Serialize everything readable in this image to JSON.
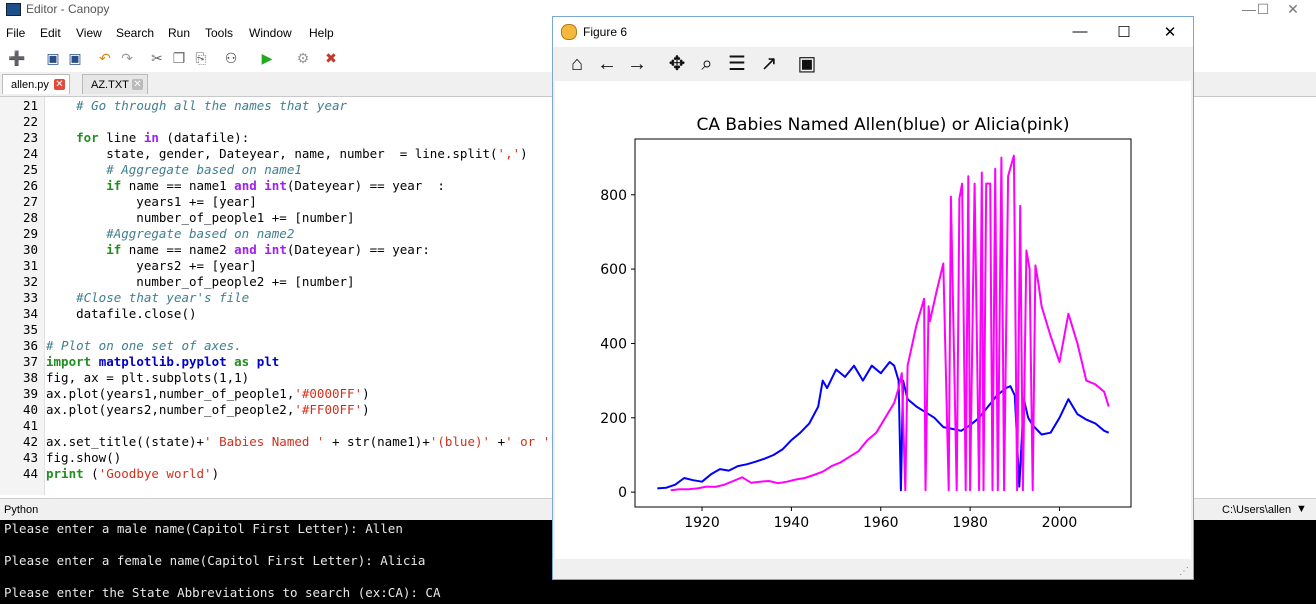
{
  "window": {
    "title": "Editor - Canopy"
  },
  "menu": [
    "File",
    "Edit",
    "View",
    "Search",
    "Run",
    "Tools",
    "Window",
    "Help"
  ],
  "tabs": [
    {
      "label": "allen.py",
      "active": true
    },
    {
      "label": "AZ.TXT",
      "active": false
    }
  ],
  "code_lines": [
    {
      "n": "21",
      "html": "    <span class='cm'># Go through all the names that year</span>"
    },
    {
      "n": "22",
      "html": ""
    },
    {
      "n": "23",
      "html": "    <span class='kw'>for</span> line <span class='kw2'>in</span> (datafile):"
    },
    {
      "n": "24",
      "html": "        state, gender, Dateyear, name, number  = line.split(<span class='st'>','</span>)"
    },
    {
      "n": "25",
      "html": "        <span class='cm'># Aggregate based on name1</span>"
    },
    {
      "n": "26",
      "html": "        <span class='kw'>if</span> name == name1 <span class='kw2'>and</span> <span class='kw2'>int</span>(Dateyear) == year  :"
    },
    {
      "n": "27",
      "html": "            years1 += [year]"
    },
    {
      "n": "28",
      "html": "            number_of_people1 += [number]"
    },
    {
      "n": "29",
      "html": "        <span class='cm'>#Aggregate based on name2</span>"
    },
    {
      "n": "30",
      "html": "        <span class='kw'>if</span> name == name2 <span class='kw2'>and</span> <span class='kw2'>int</span>(Dateyear) == year:"
    },
    {
      "n": "31",
      "html": "            years2 += [year]"
    },
    {
      "n": "32",
      "html": "            number_of_people2 += [number]"
    },
    {
      "n": "33",
      "html": "    <span class='cm'>#Close that year's file</span>"
    },
    {
      "n": "34",
      "html": "    datafile.close()"
    },
    {
      "n": "35",
      "html": ""
    },
    {
      "n": "36",
      "html": "<span class='cm'># Plot on one set of axes.</span>"
    },
    {
      "n": "37",
      "html": "<span class='kw'>import</span> <span class='nb'>matplotlib.pyplot</span> <span class='kw'>as</span> <span class='nb'>plt</span>"
    },
    {
      "n": "38",
      "html": "fig, ax = plt.subplots(1,1)"
    },
    {
      "n": "39",
      "html": "ax.plot(years1,number_of_people1,<span class='st'>'#0000FF'</span>)"
    },
    {
      "n": "40",
      "html": "ax.plot(years2,number_of_people2,<span class='st'>'#FF00FF'</span>)"
    },
    {
      "n": "41",
      "html": ""
    },
    {
      "n": "42",
      "html": "ax.set_title((state)+<span class='st'>' Babies Named '</span> + str(name1)+<span class='st'>'(blue)'</span> +<span class='st'>' or '</span>"
    },
    {
      "n": "43",
      "html": "fig.show()"
    },
    {
      "n": "44",
      "html": "<span class='kw'>print</span> (<span class='st'>'Goodbye world'</span>)"
    }
  ],
  "status": {
    "language": "Python",
    "cwd": "C:\\Users\\allen"
  },
  "console_lines": [
    "Please enter a male name(Capitol First Letter): Allen",
    "",
    "Please enter a female name(Capitol First Letter): Alicia",
    "",
    "Please enter the State Abbreviations to search (ex:CA): CA"
  ],
  "figure": {
    "title": "Figure 6"
  },
  "chart_data": {
    "type": "line",
    "title": "CA Babies Named Allen(blue) or Alicia(pink)",
    "xlim": [
      1905,
      2016
    ],
    "ylim": [
      -40,
      950
    ],
    "xticks": [
      1920,
      1940,
      1960,
      1980,
      2000
    ],
    "yticks": [
      0,
      200,
      400,
      600,
      800
    ],
    "series": [
      {
        "color": "#0000FF",
        "x": [
          1910,
          1912,
          1914,
          1916,
          1918,
          1920,
          1922,
          1924,
          1926,
          1928,
          1930,
          1932,
          1934,
          1936,
          1938,
          1940,
          1942,
          1944,
          1946,
          1947,
          1948,
          1950,
          1952,
          1954,
          1956,
          1958,
          1960,
          1962,
          1963,
          1964,
          1964.5,
          1965,
          1966,
          1968,
          1970,
          1972,
          1974,
          1976,
          1978,
          1980,
          1982,
          1984,
          1986,
          1988,
          1989,
          1990,
          1991,
          1992,
          1993,
          1994,
          1996,
          1998,
          2000,
          2002,
          2004,
          2006,
          2008,
          2010,
          2011
        ],
        "y": [
          10,
          12,
          20,
          38,
          32,
          28,
          48,
          62,
          58,
          70,
          75,
          82,
          90,
          100,
          115,
          140,
          160,
          185,
          230,
          300,
          280,
          330,
          310,
          340,
          300,
          340,
          320,
          350,
          340,
          300,
          5,
          300,
          250,
          230,
          215,
          200,
          175,
          170,
          165,
          180,
          200,
          230,
          260,
          280,
          285,
          260,
          15,
          250,
          200,
          180,
          155,
          160,
          200,
          250,
          210,
          195,
          185,
          165,
          160
        ]
      },
      {
        "color": "#FF00FF",
        "x": [
          1913,
          1915,
          1917,
          1919,
          1921,
          1923,
          1925,
          1927,
          1929,
          1931,
          1933,
          1935,
          1937,
          1939,
          1941,
          1943,
          1945,
          1947,
          1949,
          1951,
          1953,
          1955,
          1957,
          1959,
          1961,
          1963,
          1964,
          1964.7,
          1965.5,
          1966,
          1968,
          1969.7,
          1970,
          1970.7,
          1971,
          1972.5,
          1974,
          1975.2,
          1975.7,
          1977,
          1977.6,
          1978.2,
          1979,
          1979.6,
          1980,
          1981,
          1982,
          1982.6,
          1983,
          1983.6,
          1984.5,
          1985,
          1985.6,
          1986.2,
          1987,
          1987.6,
          1988.5,
          1989.2,
          1989.8,
          1990.5,
          1991.2,
          1991.8,
          1992.6,
          1993.3,
          1994,
          1994.6,
          1995.3,
          1996,
          1998,
          2000,
          2002,
          2004,
          2006,
          2008,
          2010,
          2011
        ],
        "y": [
          5,
          8,
          8,
          10,
          15,
          14,
          20,
          30,
          40,
          25,
          28,
          30,
          24,
          28,
          34,
          38,
          46,
          55,
          70,
          80,
          95,
          110,
          140,
          160,
          200,
          240,
          280,
          320,
          5,
          340,
          450,
          520,
          5,
          500,
          460,
          540,
          615,
          5,
          795,
          5,
          790,
          830,
          5,
          850,
          5,
          830,
          5,
          860,
          5,
          830,
          830,
          5,
          870,
          5,
          900,
          5,
          850,
          880,
          905,
          5,
          770,
          5,
          650,
          600,
          5,
          610,
          560,
          500,
          420,
          350,
          480,
          400,
          300,
          290,
          270,
          230
        ]
      }
    ]
  }
}
